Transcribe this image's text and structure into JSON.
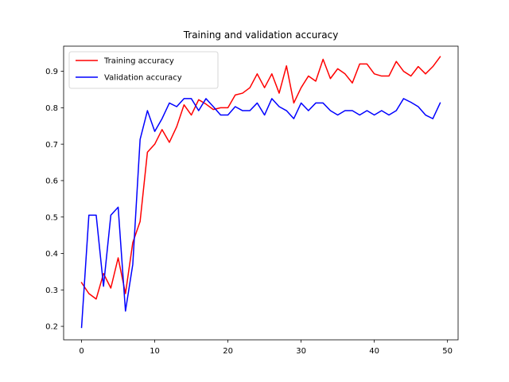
{
  "chart_data": {
    "type": "line",
    "title": "Training and validation accuracy",
    "xlabel": "",
    "ylabel": "",
    "xlim": [
      -2.45,
      51.45
    ],
    "ylim": [
      0.163,
      0.969
    ],
    "xticks": [
      0,
      10,
      20,
      30,
      40,
      50
    ],
    "yticks": [
      0.2,
      0.3,
      0.4,
      0.5,
      0.6,
      0.7,
      0.8,
      0.9
    ],
    "grid": false,
    "legend_position": "upper-left",
    "x": [
      0,
      1,
      2,
      3,
      4,
      5,
      6,
      7,
      8,
      9,
      10,
      11,
      12,
      13,
      14,
      15,
      16,
      17,
      18,
      19,
      20,
      21,
      22,
      23,
      24,
      25,
      26,
      27,
      28,
      29,
      30,
      31,
      32,
      33,
      34,
      35,
      36,
      37,
      38,
      39,
      40,
      41,
      42,
      43,
      44,
      45,
      46,
      47,
      48,
      49
    ],
    "series": [
      {
        "name": "Training accuracy",
        "color": "#ff0000",
        "values": [
          0.32,
          0.29,
          0.275,
          0.345,
          0.305,
          0.388,
          0.29,
          0.43,
          0.488,
          0.678,
          0.7,
          0.74,
          0.705,
          0.748,
          0.808,
          0.78,
          0.822,
          0.81,
          0.795,
          0.8,
          0.8,
          0.835,
          0.84,
          0.855,
          0.893,
          0.855,
          0.893,
          0.84,
          0.915,
          0.813,
          0.855,
          0.887,
          0.873,
          0.933,
          0.88,
          0.907,
          0.893,
          0.868,
          0.92,
          0.92,
          0.893,
          0.887,
          0.887,
          0.927,
          0.9,
          0.887,
          0.913,
          0.893,
          0.913,
          0.94
        ]
      },
      {
        "name": "Validation accuracy",
        "color": "#0000ff",
        "values": [
          0.197,
          0.505,
          0.505,
          0.31,
          0.505,
          0.527,
          0.242,
          0.37,
          0.713,
          0.792,
          0.735,
          0.77,
          0.813,
          0.803,
          0.825,
          0.825,
          0.792,
          0.825,
          0.803,
          0.78,
          0.78,
          0.803,
          0.792,
          0.792,
          0.813,
          0.78,
          0.825,
          0.803,
          0.792,
          0.77,
          0.813,
          0.792,
          0.813,
          0.813,
          0.792,
          0.78,
          0.792,
          0.792,
          0.78,
          0.792,
          0.78,
          0.792,
          0.78,
          0.792,
          0.825,
          0.815,
          0.803,
          0.78,
          0.77,
          0.813
        ]
      }
    ]
  }
}
